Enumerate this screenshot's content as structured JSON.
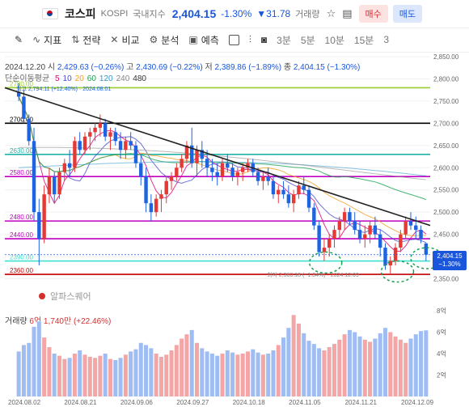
{
  "header": {
    "name": "코스피",
    "code": "KOSPI",
    "type": "국내지수",
    "price": "2,404.15",
    "pct": "-1.30%",
    "change": "▼31.78",
    "volume_label": "거래량",
    "buy": "매수",
    "sell": "매도"
  },
  "toolbar": {
    "indicator": "지표",
    "strategy": "전략",
    "compare": "비교",
    "analysis": "분석",
    "forecast": "예측",
    "intervals": [
      "3분",
      "5분",
      "10분",
      "15분",
      "3"
    ]
  },
  "info": {
    "date": "2024.12.20",
    "open_label": "시",
    "open": "2,429.63 (−0.26%)",
    "high_label": "고",
    "high": "2,430.69 (−0.22%)",
    "low_label": "저",
    "low": "2,389.86 (−1.89%)",
    "close_label": "종",
    "close": "2,404.15 (−1.30%)"
  },
  "ma": {
    "label": "단순이동평균",
    "periods": [
      "5",
      "10",
      "20",
      "60",
      "120",
      "240",
      "480"
    ],
    "colors": [
      "#e0007a",
      "#4b4bd1",
      "#f0a020",
      "#1aa050",
      "#3399cc",
      "#888888",
      "#333333"
    ]
  },
  "high_marker": "최고 2,794.11 (+12.40%) · 2024.08.01",
  "low_marker": "최저 2,360.18 (−1.84%) · 2024.12.09",
  "levels": [
    {
      "value": "2780.00",
      "color": "#9acd32"
    },
    {
      "value": "2700.00",
      "color": "#000000"
    },
    {
      "value": "2630.00",
      "color": "#20b2aa"
    },
    {
      "value": "2580.00",
      "color": "#c000c0"
    },
    {
      "value": "2480.00",
      "color": "#c000c0"
    },
    {
      "value": "2440.00",
      "color": "#c000c0"
    },
    {
      "value": "2390.00",
      "color": "#40e0d0"
    },
    {
      "value": "2360.00",
      "color": "#c00000"
    }
  ],
  "price_axis": [
    "2,850.00",
    "2,800.00",
    "2,750.00",
    "2,700.00",
    "2,650.00",
    "2,600.00",
    "2,550.00",
    "2,500.00",
    "2,450.00",
    "2,400.00",
    "2,350.00"
  ],
  "price_badge": {
    "price": "2,404.15",
    "pct": "−1.30%"
  },
  "alpha_label": "알파스퀘어",
  "volume": {
    "label": "거래량",
    "value": "6억 1,740만",
    "pct": "(+22.46%)",
    "axis": [
      "8억",
      "6억",
      "4억",
      "2억"
    ]
  },
  "dates": [
    "2024.08.02",
    "2024.08.21",
    "2024.09.06",
    "2024.09.27",
    "2024.10.18",
    "2024.11.05",
    "2024.11.21",
    "2024.12.09"
  ],
  "chart_data": {
    "type": "candlestick",
    "ylim": [
      2340,
      2850
    ],
    "candles": [
      [
        2770,
        2790,
        2750,
        2760
      ],
      [
        2760,
        2775,
        2700,
        2710
      ],
      [
        2710,
        2720,
        2650,
        2660
      ],
      [
        2660,
        2690,
        2480,
        2500
      ],
      [
        2500,
        2530,
        2380,
        2440
      ],
      [
        2440,
        2560,
        2430,
        2540
      ],
      [
        2540,
        2600,
        2520,
        2580
      ],
      [
        2580,
        2590,
        2520,
        2540
      ],
      [
        2540,
        2600,
        2530,
        2590
      ],
      [
        2590,
        2620,
        2570,
        2610
      ],
      [
        2610,
        2640,
        2580,
        2600
      ],
      [
        2600,
        2670,
        2590,
        2660
      ],
      [
        2660,
        2680,
        2630,
        2640
      ],
      [
        2640,
        2680,
        2630,
        2670
      ],
      [
        2670,
        2690,
        2640,
        2680
      ],
      [
        2680,
        2700,
        2660,
        2690
      ],
      [
        2690,
        2720,
        2670,
        2700
      ],
      [
        2700,
        2710,
        2660,
        2670
      ],
      [
        2670,
        2690,
        2640,
        2680
      ],
      [
        2680,
        2690,
        2650,
        2660
      ],
      [
        2660,
        2680,
        2620,
        2640
      ],
      [
        2640,
        2670,
        2620,
        2660
      ],
      [
        2660,
        2680,
        2640,
        2650
      ],
      [
        2650,
        2660,
        2600,
        2610
      ],
      [
        2610,
        2630,
        2560,
        2580
      ],
      [
        2580,
        2600,
        2500,
        2520
      ],
      [
        2520,
        2540,
        2480,
        2500
      ],
      [
        2500,
        2540,
        2490,
        2530
      ],
      [
        2530,
        2550,
        2500,
        2540
      ],
      [
        2540,
        2580,
        2520,
        2570
      ],
      [
        2570,
        2590,
        2550,
        2580
      ],
      [
        2580,
        2610,
        2570,
        2600
      ],
      [
        2600,
        2630,
        2590,
        2620
      ],
      [
        2620,
        2660,
        2610,
        2650
      ],
      [
        2650,
        2690,
        2600,
        2610
      ],
      [
        2610,
        2650,
        2580,
        2640
      ],
      [
        2640,
        2660,
        2600,
        2620
      ],
      [
        2620,
        2640,
        2580,
        2600
      ],
      [
        2600,
        2620,
        2570,
        2590
      ],
      [
        2590,
        2610,
        2560,
        2580
      ],
      [
        2580,
        2620,
        2570,
        2610
      ],
      [
        2610,
        2630,
        2590,
        2600
      ],
      [
        2600,
        2610,
        2570,
        2580
      ],
      [
        2580,
        2600,
        2560,
        2590
      ],
      [
        2590,
        2610,
        2570,
        2600
      ],
      [
        2600,
        2620,
        2590,
        2610
      ],
      [
        2610,
        2620,
        2580,
        2590
      ],
      [
        2590,
        2600,
        2560,
        2570
      ],
      [
        2570,
        2590,
        2550,
        2580
      ],
      [
        2580,
        2600,
        2560,
        2570
      ],
      [
        2570,
        2580,
        2530,
        2540
      ],
      [
        2540,
        2560,
        2520,
        2550
      ],
      [
        2550,
        2570,
        2530,
        2540
      ],
      [
        2540,
        2560,
        2510,
        2520
      ],
      [
        2520,
        2550,
        2500,
        2540
      ],
      [
        2540,
        2570,
        2530,
        2560
      ],
      [
        2560,
        2580,
        2540,
        2550
      ],
      [
        2550,
        2560,
        2500,
        2510
      ],
      [
        2510,
        2520,
        2460,
        2470
      ],
      [
        2470,
        2480,
        2400,
        2410
      ],
      [
        2410,
        2440,
        2390,
        2420
      ],
      [
        2420,
        2450,
        2400,
        2440
      ],
      [
        2440,
        2470,
        2420,
        2460
      ],
      [
        2460,
        2490,
        2440,
        2480
      ],
      [
        2480,
        2510,
        2460,
        2500
      ],
      [
        2500,
        2510,
        2470,
        2480
      ],
      [
        2480,
        2500,
        2450,
        2460
      ],
      [
        2460,
        2480,
        2430,
        2440
      ],
      [
        2440,
        2470,
        2420,
        2450
      ],
      [
        2450,
        2480,
        2430,
        2470
      ],
      [
        2470,
        2490,
        2440,
        2450
      ],
      [
        2450,
        2460,
        2400,
        2420
      ],
      [
        2420,
        2430,
        2370,
        2380
      ],
      [
        2380,
        2400,
        2360,
        2390
      ],
      [
        2390,
        2430,
        2380,
        2420
      ],
      [
        2420,
        2460,
        2410,
        2450
      ],
      [
        2450,
        2490,
        2440,
        2480
      ],
      [
        2480,
        2500,
        2460,
        2470
      ],
      [
        2470,
        2490,
        2440,
        2460
      ],
      [
        2460,
        2470,
        2430,
        2440
      ],
      [
        2429.63,
        2430.69,
        2389.86,
        2404.15
      ]
    ],
    "volume_yi": [
      4.2,
      4.8,
      5.0,
      6.5,
      7.0,
      5.5,
      4.6,
      4.0,
      3.8,
      3.5,
      3.6,
      4.0,
      4.3,
      3.9,
      3.7,
      3.6,
      3.8,
      4.0,
      3.5,
      3.4,
      3.6,
      3.9,
      4.2,
      4.4,
      5.0,
      4.8,
      4.5,
      4.0,
      3.7,
      3.9,
      4.3,
      4.8,
      5.4,
      5.8,
      6.2,
      5.0,
      4.5,
      4.2,
      4.0,
      3.8,
      4.0,
      4.3,
      4.1,
      3.9,
      4.0,
      4.2,
      4.4,
      4.1,
      3.9,
      4.0,
      4.3,
      4.8,
      5.5,
      6.4,
      7.6,
      6.8,
      5.9,
      5.2,
      4.9,
      4.5,
      4.3,
      4.6,
      4.9,
      5.3,
      5.8,
      6.2,
      6.0,
      5.6,
      5.3,
      5.1,
      5.4,
      5.9,
      6.4,
      6.0,
      5.6,
      5.3,
      5.0,
      5.4,
      5.8,
      6.1,
      6.17
    ],
    "volume_ylim": [
      0,
      8
    ]
  }
}
